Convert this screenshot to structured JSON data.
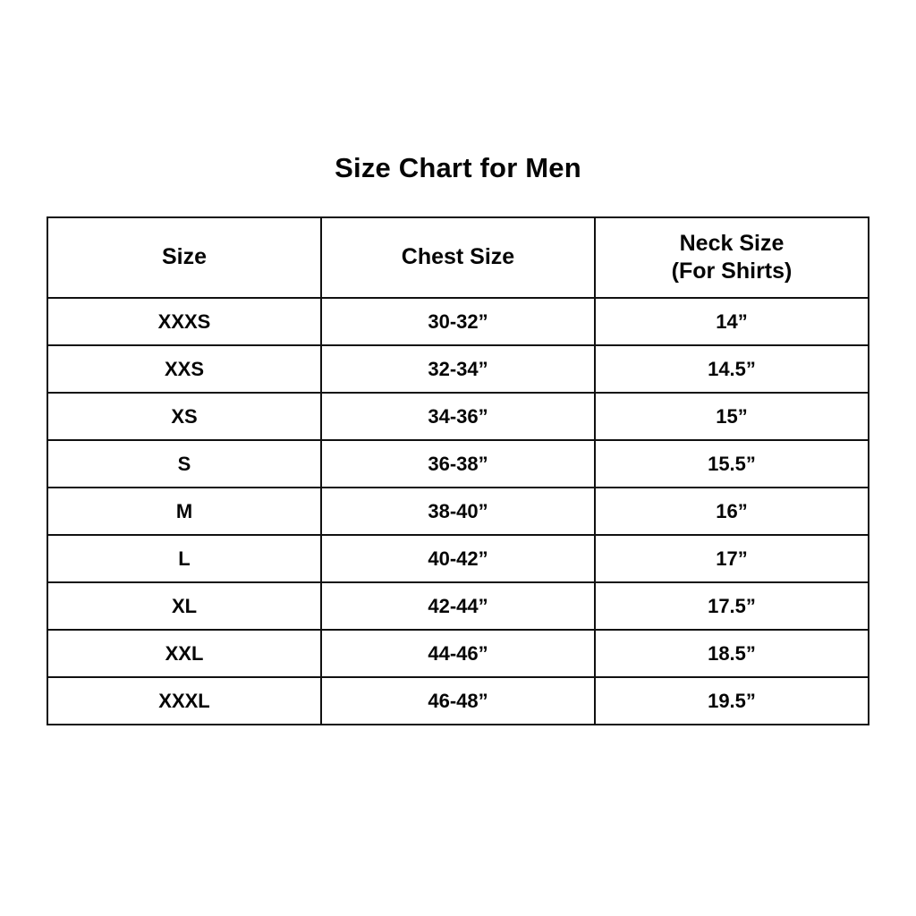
{
  "title": "Size Chart for Men",
  "table": {
    "columns": [
      {
        "label": "Size",
        "sublabel": ""
      },
      {
        "label": "Chest Size",
        "sublabel": ""
      },
      {
        "label": "Neck Size",
        "sublabel": "(For Shirts)"
      }
    ],
    "rows": [
      {
        "size": "XXXS",
        "chest": "30-32”",
        "neck": "14”"
      },
      {
        "size": "XXS",
        "chest": "32-34”",
        "neck": "14.5”"
      },
      {
        "size": "XS",
        "chest": "34-36”",
        "neck": "15”"
      },
      {
        "size": "S",
        "chest": "36-38”",
        "neck": "15.5”"
      },
      {
        "size": "M",
        "chest": "38-40”",
        "neck": "16”"
      },
      {
        "size": "L",
        "chest": "40-42”",
        "neck": "17”"
      },
      {
        "size": "XL",
        "chest": "42-44”",
        "neck": "17.5”"
      },
      {
        "size": "XXL",
        "chest": "44-46”",
        "neck": "18.5”"
      },
      {
        "size": "XXXL",
        "chest": "46-48”",
        "neck": "19.5”"
      }
    ]
  }
}
